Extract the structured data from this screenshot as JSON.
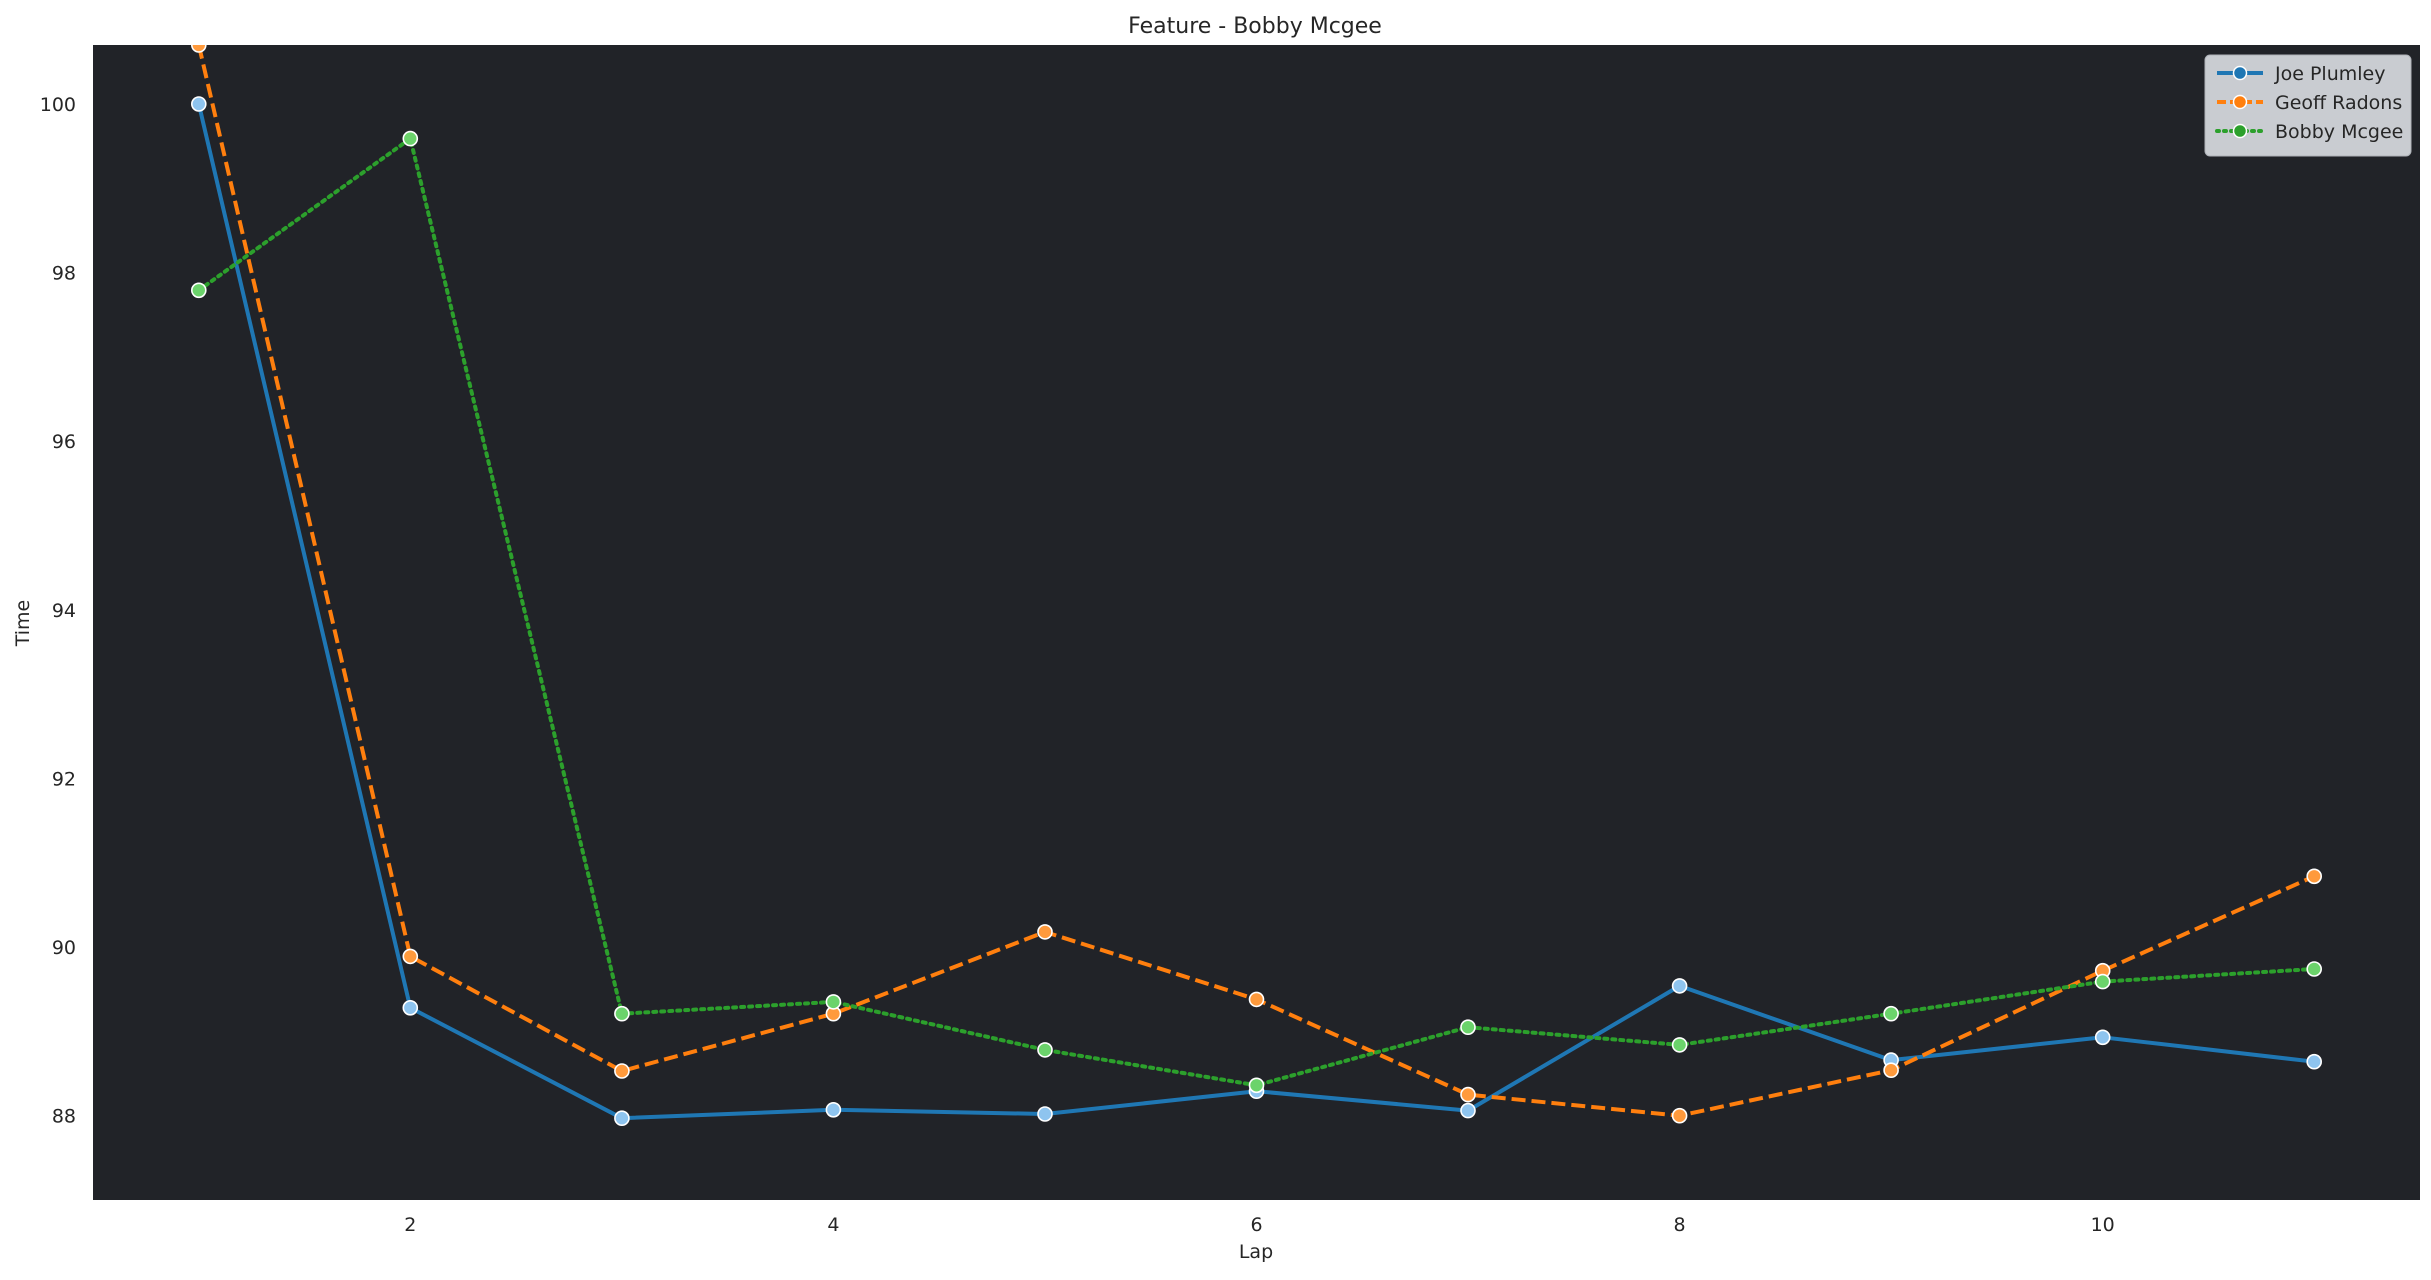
{
  "chart_data": {
    "type": "line",
    "title": "Feature - Bobby Mcgee",
    "xlabel": "Lap",
    "ylabel": "Time",
    "xlim": [
      0.5,
      11.5
    ],
    "ylim": [
      87.0,
      100.7
    ],
    "xticks": [
      2,
      4,
      6,
      8,
      10
    ],
    "yticks": [
      88,
      90,
      92,
      94,
      96,
      98,
      100
    ],
    "grid": false,
    "legend_position": "top-right",
    "plot_background": "#212328",
    "x": [
      1,
      2,
      3,
      4,
      5,
      6,
      7,
      8,
      9,
      10,
      11
    ],
    "series": [
      {
        "name": "Joe Plumley",
        "color": "#1f77b4",
        "linestyle": "solid",
        "marker_fill": "#8ec4ef",
        "values": [
          100.0,
          89.28,
          87.97,
          88.07,
          88.02,
          88.29,
          88.06,
          89.54,
          88.66,
          88.93,
          88.64
        ]
      },
      {
        "name": "Geoff Radons",
        "color": "#ff7f0e",
        "linestyle": "dashed",
        "marker_fill": "#ff9a3c",
        "values": [
          100.7,
          89.89,
          88.53,
          89.21,
          90.18,
          89.38,
          88.25,
          88.0,
          88.54,
          89.72,
          90.84
        ]
      },
      {
        "name": "Bobby Mcgee",
        "color": "#2ca02c",
        "linestyle": "dotted",
        "marker_fill": "#6bd36b",
        "values": [
          97.79,
          99.59,
          89.21,
          89.35,
          88.78,
          88.36,
          89.05,
          88.84,
          89.21,
          89.59,
          89.74
        ]
      }
    ]
  }
}
